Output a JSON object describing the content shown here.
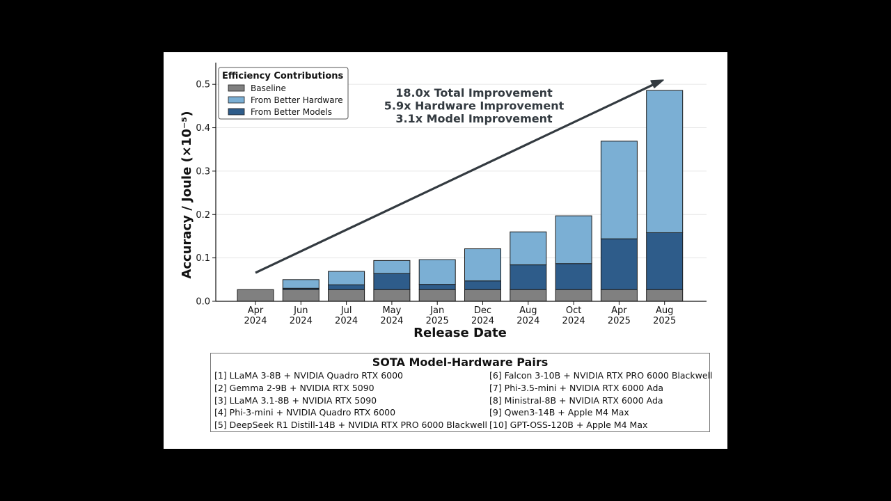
{
  "chart_data": {
    "type": "bar",
    "stacked": true,
    "xlabel": "Release Date",
    "ylabel": "Accuracy / Joule (×10⁻⁵)",
    "ylim": [
      0,
      0.55
    ],
    "yticks": [
      "0.0",
      "0.1",
      "0.2",
      "0.3",
      "0.4",
      "0.5"
    ],
    "grid": true,
    "categories": [
      {
        "month": "Apr",
        "year": "2024"
      },
      {
        "month": "Jun",
        "year": "2024"
      },
      {
        "month": "Jul",
        "year": "2024"
      },
      {
        "month": "May",
        "year": "2024"
      },
      {
        "month": "Jan",
        "year": "2025"
      },
      {
        "month": "Dec",
        "year": "2024"
      },
      {
        "month": "Aug",
        "year": "2024"
      },
      {
        "month": "Oct",
        "year": "2024"
      },
      {
        "month": "Apr",
        "year": "2025"
      },
      {
        "month": "Aug",
        "year": "2025"
      }
    ],
    "series": [
      {
        "name": "Baseline",
        "color": "#808080",
        "values": [
          0.027,
          0.027,
          0.027,
          0.027,
          0.027,
          0.027,
          0.027,
          0.027,
          0.027,
          0.027
        ]
      },
      {
        "name": "From Better Models",
        "color": "#2e5c8a",
        "values": [
          0.0,
          0.003,
          0.011,
          0.037,
          0.012,
          0.02,
          0.057,
          0.06,
          0.117,
          0.131
        ]
      },
      {
        "name": "From Better Hardware",
        "color": "#7bafd4",
        "values": [
          0.0,
          0.02,
          0.031,
          0.03,
          0.057,
          0.074,
          0.076,
          0.11,
          0.225,
          0.328
        ]
      }
    ],
    "legend": {
      "title": "Efficiency Contributions",
      "placement": "top-left",
      "order": [
        "Baseline",
        "From Better Hardware",
        "From Better Models"
      ]
    },
    "annotations": [
      "18.0x Total Improvement",
      "5.9x Hardware Improvement",
      "3.1x Model Improvement"
    ],
    "trend_arrow": {
      "color": "#333a40"
    }
  },
  "pairs_table": {
    "title": "SOTA Model-Hardware Pairs",
    "left": [
      "[1] LLaMA 3-8B + NVIDIA Quadro RTX 6000",
      "[2] Gemma 2-9B + NVIDIA RTX 5090",
      "[3] LLaMA 3.1-8B + NVIDIA RTX 5090",
      "[4] Phi-3-mini + NVIDIA Quadro RTX 6000",
      "[5] DeepSeek R1 Distill-14B + NVIDIA RTX PRO 6000 Blackwell"
    ],
    "right": [
      "[6] Falcon 3-10B + NVIDIA RTX PRO 6000 Blackwell",
      "[7] Phi-3.5-mini + NVIDIA RTX 6000 Ada",
      "[8] Ministral-8B + NVIDIA RTX 6000 Ada",
      "[9] Qwen3-14B + Apple M4 Max",
      "[10] GPT-OSS-120B + Apple M4 Max"
    ]
  }
}
